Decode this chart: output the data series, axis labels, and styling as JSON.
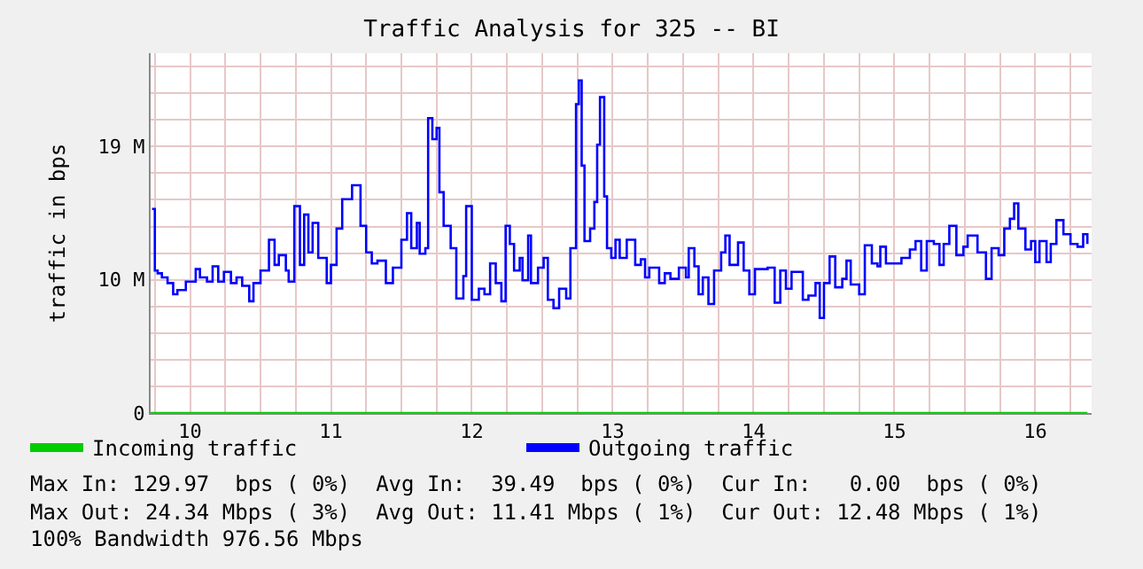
{
  "chart_data": {
    "type": "step",
    "title": "Traffic Analysis for 325 -- BI",
    "ylabel": "traffic in bps",
    "xlim": [
      9.72,
      16.4
    ],
    "ylim": [
      0,
      25.75
    ],
    "xticks": [
      {
        "value": 9.75,
        "label": null
      },
      10,
      {
        "value": 10.25,
        "label": null
      },
      {
        "value": 10.5,
        "label": null
      },
      {
        "value": 10.75,
        "label": null
      },
      11,
      {
        "value": 11.25,
        "label": null
      },
      {
        "value": 11.5,
        "label": null
      },
      {
        "value": 11.75,
        "label": null
      },
      12,
      {
        "value": 12.25,
        "label": null
      },
      {
        "value": 12.5,
        "label": null
      },
      {
        "value": 12.75,
        "label": null
      },
      13,
      {
        "value": 13.25,
        "label": null
      },
      {
        "value": 13.5,
        "label": null
      },
      {
        "value": 13.75,
        "label": null
      },
      14,
      {
        "value": 14.25,
        "label": null
      },
      {
        "value": 14.5,
        "label": null
      },
      {
        "value": 14.75,
        "label": null
      },
      15,
      {
        "value": 15.25,
        "label": null
      },
      {
        "value": 15.5,
        "label": null
      },
      {
        "value": 15.75,
        "label": null
      },
      16,
      {
        "value": 16.25,
        "label": null
      }
    ],
    "yticks": [
      0,
      {
        "value": 1.91,
        "label": null
      },
      {
        "value": 3.81,
        "label": null
      },
      {
        "value": 5.72,
        "label": null
      },
      {
        "value": 7.63,
        "label": null
      },
      {
        "value": 9.54,
        "label": "10 M"
      },
      {
        "value": 11.44,
        "label": null
      },
      {
        "value": 13.35,
        "label": null
      },
      {
        "value": 15.26,
        "label": null
      },
      {
        "value": 17.17,
        "label": null
      },
      {
        "value": 19.07,
        "label": "19 M"
      },
      {
        "value": 20.98,
        "label": null
      },
      {
        "value": 22.89,
        "label": null
      },
      {
        "value": 24.8,
        "label": null
      }
    ],
    "grid": true,
    "legend": "bottom left",
    "marker": "none",
    "line_style": "solid",
    "series": [
      {
        "name": "Incoming traffic",
        "color": "#00cc00",
        "x": [
          9.72,
          16.37
        ],
        "values": [
          0,
          0
        ]
      },
      {
        "name": "Outgoing traffic",
        "color": "#0000ff",
        "x": [
          9.73,
          9.75,
          9.77,
          9.8,
          9.84,
          9.88,
          9.91,
          9.97,
          9.99,
          10.04,
          10.07,
          10.12,
          10.16,
          10.2,
          10.24,
          10.29,
          10.33,
          10.37,
          10.42,
          10.45,
          10.5,
          10.56,
          10.6,
          10.63,
          10.68,
          10.7,
          10.74,
          10.78,
          10.81,
          10.84,
          10.87,
          10.91,
          10.97,
          11.0,
          11.04,
          11.08,
          11.15,
          11.21,
          11.25,
          11.29,
          11.33,
          11.39,
          11.44,
          11.5,
          11.54,
          11.57,
          11.61,
          11.63,
          11.67,
          11.69,
          11.72,
          11.75,
          11.77,
          11.8,
          11.85,
          11.89,
          11.94,
          11.96,
          12.0,
          12.05,
          12.09,
          12.13,
          12.17,
          12.21,
          12.24,
          12.27,
          12.3,
          12.34,
          12.36,
          12.4,
          12.42,
          12.47,
          12.51,
          12.54,
          12.58,
          12.62,
          12.67,
          12.7,
          12.74,
          12.76,
          12.78,
          12.8,
          12.84,
          12.87,
          12.89,
          12.91,
          12.94,
          12.96,
          12.99,
          13.02,
          13.05,
          13.1,
          13.16,
          13.2,
          13.23,
          13.26,
          13.33,
          13.37,
          13.41,
          13.47,
          13.52,
          13.54,
          13.58,
          13.61,
          13.64,
          13.68,
          13.72,
          13.77,
          13.8,
          13.83,
          13.89,
          13.93,
          13.97,
          14.01,
          14.1,
          14.15,
          14.19,
          14.23,
          14.27,
          14.35,
          14.39,
          14.44,
          14.47,
          14.5,
          14.54,
          14.58,
          14.63,
          14.66,
          14.69,
          14.75,
          14.79,
          14.84,
          14.88,
          14.9,
          14.94,
          15.05,
          15.11,
          15.15,
          15.19,
          15.23,
          15.28,
          15.32,
          15.35,
          15.39,
          15.44,
          15.49,
          15.52,
          15.59,
          15.65,
          15.69,
          15.74,
          15.78,
          15.82,
          15.85,
          15.88,
          15.93,
          15.97,
          16.0,
          16.03,
          16.08,
          16.11,
          16.15,
          16.2,
          16.25,
          16.3,
          16.34,
          16.37
        ],
        "values": [
          14.6,
          10.2,
          10.0,
          9.7,
          9.3,
          8.5,
          8.8,
          9.4,
          9.4,
          10.3,
          9.7,
          9.4,
          10.5,
          9.4,
          10.1,
          9.3,
          9.7,
          9.1,
          8.0,
          9.3,
          10.2,
          12.4,
          10.6,
          11.3,
          10.2,
          9.4,
          14.8,
          10.6,
          14.2,
          11.5,
          13.6,
          11.1,
          9.3,
          10.6,
          13.2,
          15.3,
          16.3,
          13.4,
          11.5,
          10.7,
          10.9,
          9.3,
          10.4,
          12.4,
          14.3,
          11.8,
          13.6,
          11.4,
          11.8,
          21.1,
          19.6,
          20.4,
          15.8,
          13.4,
          11.8,
          8.2,
          9.8,
          14.8,
          8.1,
          8.9,
          8.5,
          10.7,
          9.3,
          8.0,
          13.4,
          12.1,
          10.2,
          11.1,
          9.5,
          12.7,
          9.3,
          10.4,
          11.1,
          8.1,
          7.5,
          8.9,
          8.2,
          11.8,
          22.1,
          23.8,
          17.7,
          12.3,
          13.2,
          15.1,
          19.2,
          22.6,
          15.5,
          11.8,
          11.1,
          12.4,
          11.1,
          12.4,
          10.6,
          11.0,
          9.7,
          10.4,
          9.3,
          10.0,
          9.6,
          10.4,
          9.7,
          11.8,
          10.5,
          8.5,
          9.7,
          7.8,
          10.2,
          11.5,
          12.7,
          10.6,
          12.2,
          10.2,
          8.5,
          10.3,
          10.4,
          7.9,
          10.2,
          8.9,
          10.1,
          8.1,
          8.4,
          9.3,
          6.8,
          9.3,
          11.2,
          9.0,
          9.6,
          10.9,
          9.2,
          8.5,
          12.0,
          10.7,
          10.5,
          11.9,
          10.7,
          11.1,
          11.7,
          12.3,
          10.2,
          12.3,
          12.1,
          10.6,
          12.1,
          13.4,
          11.3,
          11.9,
          12.7,
          11.5,
          9.6,
          11.8,
          11.3,
          13.2,
          13.9,
          15.0,
          13.2,
          11.7,
          12.3,
          10.8,
          12.3,
          10.8,
          12.1,
          13.8,
          12.8,
          12.1,
          11.9,
          12.8,
          12.1
        ]
      }
    ],
    "annotations": [
      "Max In: 129.97  bps ( 0%)  Avg In:  39.49  bps ( 0%)  Cur In:   0.00  bps ( 0%)",
      "Max Out: 24.34 Mbps ( 3%)  Avg Out: 11.41 Mbps ( 1%)  Cur Out: 12.48 Mbps ( 1%)",
      "100% Bandwidth 976.56 Mbps"
    ]
  }
}
